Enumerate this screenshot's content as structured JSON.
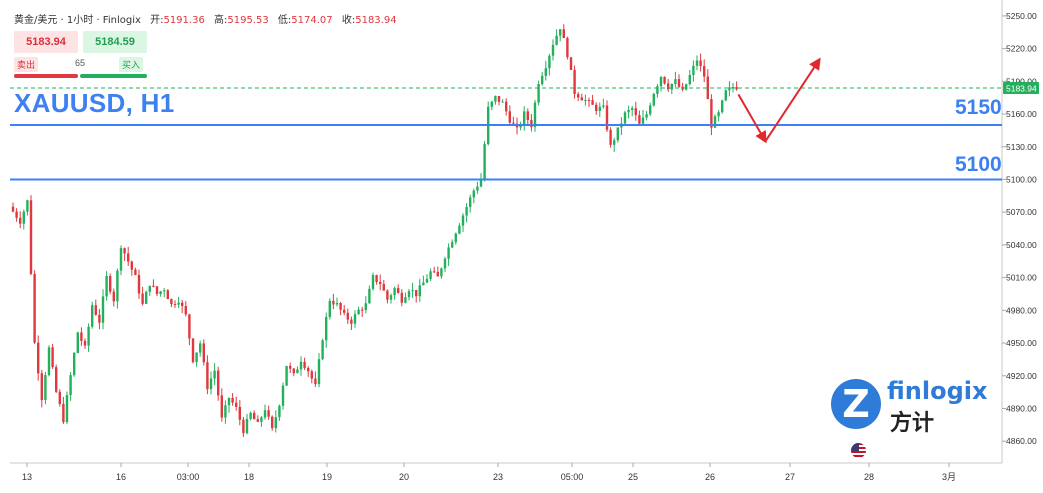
{
  "header": {
    "symbol_title": "黄金/美元 · 1小时 · Finlogix",
    "open_label": "开:",
    "open_value": "5191.36",
    "high_label": "高:",
    "high_value": "5195.53",
    "low_label": "低:",
    "low_value": "5174.07",
    "close_label": "收:",
    "close_value": "5183.94"
  },
  "trade_panel": {
    "sell_price": "5183.94",
    "buy_price": "5184.59",
    "sell_label": "卖出",
    "buy_label": "买入",
    "spread": "65"
  },
  "overlay": {
    "title": "XAUUSD, H1",
    "level_upper": "5150",
    "level_lower": "5100"
  },
  "logo": {
    "text_en": "finlogix",
    "text_cn": "方计"
  },
  "colors": {
    "bull": "#22b05c",
    "bear": "#e0383e",
    "level_line": "#3d80f2",
    "arrow": "#e0282e"
  },
  "chart_data": {
    "type": "candlestick",
    "symbol": "XAUUSD",
    "timeframe": "H1",
    "last_price": 5183.94,
    "ylim": [
      4840,
      5260
    ],
    "y_ticks": [
      4860,
      4890,
      4920,
      4950,
      4980,
      5010,
      5040,
      5070,
      5100,
      5130,
      5160,
      5190,
      5220,
      5250
    ],
    "y_tick_labels": [
      "4860.00",
      "4890.00",
      "4920.00",
      "4950.00",
      "4980.00",
      "5010.00",
      "5040.00",
      "5070.00",
      "5100.00",
      "5130.00",
      "5160.00",
      "5190.00",
      "5220.00",
      "5250.00"
    ],
    "x_tick_labels": [
      "13",
      "16",
      "03:00",
      "18",
      "19",
      "20",
      "23",
      "05:00",
      "25",
      "26",
      "27",
      "28",
      "3月"
    ],
    "horizontal_levels": [
      5150,
      5100
    ],
    "path_points": [
      [
        0,
        5075
      ],
      [
        3,
        5062
      ],
      [
        5,
        5080
      ],
      [
        7,
        4950
      ],
      [
        9,
        4900
      ],
      [
        11,
        4945
      ],
      [
        13,
        4905
      ],
      [
        15,
        4880
      ],
      [
        17,
        4920
      ],
      [
        19,
        4960
      ],
      [
        21,
        4945
      ],
      [
        23,
        4985
      ],
      [
        25,
        4970
      ],
      [
        27,
        5010
      ],
      [
        29,
        4990
      ],
      [
        31,
        5040
      ],
      [
        33,
        5025
      ],
      [
        35,
        5010
      ],
      [
        37,
        4985
      ],
      [
        39,
        5005
      ],
      [
        41,
        4995
      ],
      [
        43,
        5000
      ],
      [
        45,
        4985
      ],
      [
        47,
        4990
      ],
      [
        49,
        4975
      ],
      [
        51,
        4935
      ],
      [
        53,
        4950
      ],
      [
        55,
        4910
      ],
      [
        57,
        4925
      ],
      [
        59,
        4880
      ],
      [
        61,
        4900
      ],
      [
        63,
        4890
      ],
      [
        65,
        4870
      ],
      [
        67,
        4885
      ],
      [
        69,
        4875
      ],
      [
        71,
        4890
      ],
      [
        73,
        4870
      ],
      [
        75,
        4895
      ],
      [
        77,
        4930
      ],
      [
        79,
        4920
      ],
      [
        81,
        4935
      ],
      [
        83,
        4925
      ],
      [
        85,
        4910
      ],
      [
        87,
        4955
      ],
      [
        89,
        4990
      ],
      [
        91,
        4985
      ],
      [
        93,
        4975
      ],
      [
        95,
        4970
      ],
      [
        97,
        4980
      ],
      [
        99,
        4985
      ],
      [
        101,
        5010
      ],
      [
        103,
        5005
      ],
      [
        105,
        4990
      ],
      [
        107,
        5000
      ],
      [
        109,
        4990
      ],
      [
        111,
        5000
      ],
      [
        113,
        4995
      ],
      [
        115,
        5005
      ],
      [
        117,
        5015
      ],
      [
        119,
        5010
      ],
      [
        121,
        5030
      ],
      [
        123,
        5045
      ],
      [
        125,
        5060
      ],
      [
        127,
        5075
      ],
      [
        129,
        5090
      ],
      [
        131,
        5100
      ],
      [
        133,
        5165
      ],
      [
        135,
        5175
      ],
      [
        137,
        5170
      ],
      [
        139,
        5155
      ],
      [
        141,
        5145
      ],
      [
        143,
        5160
      ],
      [
        145,
        5150
      ],
      [
        147,
        5190
      ],
      [
        149,
        5205
      ],
      [
        151,
        5225
      ],
      [
        153,
        5240
      ],
      [
        155,
        5215
      ],
      [
        157,
        5180
      ],
      [
        159,
        5175
      ],
      [
        161,
        5170
      ],
      [
        163,
        5165
      ],
      [
        165,
        5165
      ],
      [
        167,
        5130
      ],
      [
        169,
        5145
      ],
      [
        171,
        5160
      ],
      [
        173,
        5165
      ],
      [
        175,
        5150
      ],
      [
        177,
        5160
      ],
      [
        179,
        5180
      ],
      [
        181,
        5195
      ],
      [
        183,
        5185
      ],
      [
        185,
        5190
      ],
      [
        187,
        5180
      ],
      [
        189,
        5195
      ],
      [
        191,
        5210
      ],
      [
        193,
        5195
      ],
      [
        195,
        5150
      ],
      [
        197,
        5160
      ],
      [
        199,
        5180
      ],
      [
        201,
        5185
      ]
    ],
    "forecast_arrows": [
      {
        "from": [
          5178,
          201.5
        ],
        "to": [
          5135,
          209
        ]
      },
      {
        "from": [
          5135,
          209
        ],
        "to": [
          5210,
          224
        ]
      }
    ]
  }
}
